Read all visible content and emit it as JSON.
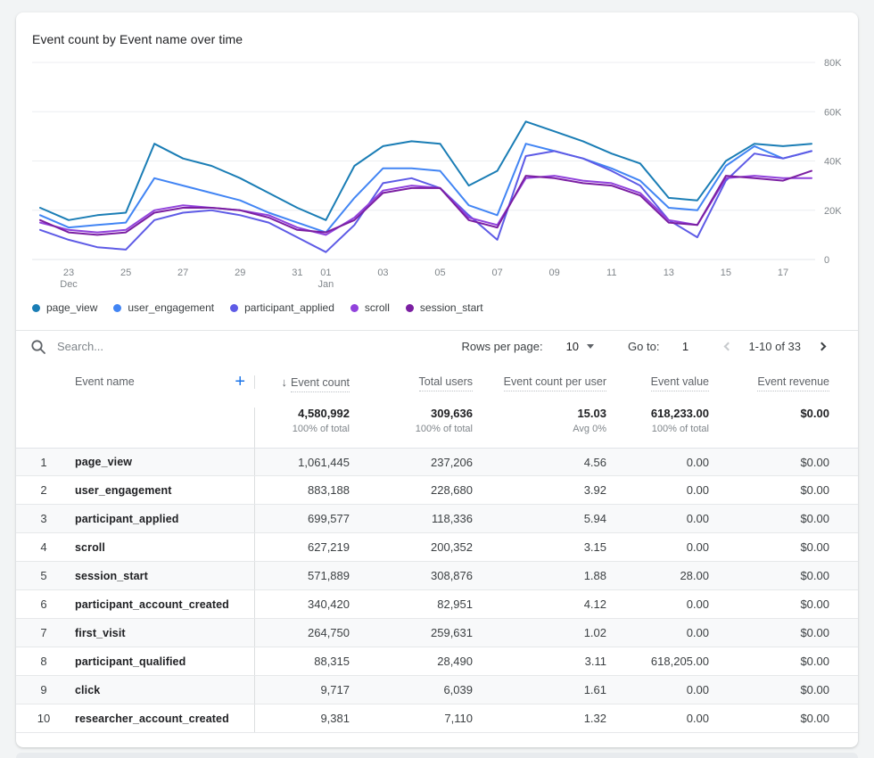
{
  "card": {
    "title": "Event count by Event name over time"
  },
  "chart_data": {
    "type": "line",
    "title": "Event count by Event name over time",
    "xlabel": "",
    "ylabel": "Event count",
    "ylim": [
      0,
      80000
    ],
    "grid": true,
    "legend_position": "bottom",
    "x": [
      "Dec 22",
      "Dec 23",
      "Dec 24",
      "Dec 25",
      "Dec 26",
      "Dec 27",
      "Dec 28",
      "Dec 29",
      "Dec 30",
      "Dec 31",
      "Jan 01",
      "Jan 02",
      "Jan 03",
      "Jan 04",
      "Jan 05",
      "Jan 06",
      "Jan 07",
      "Jan 08",
      "Jan 09",
      "Jan 10",
      "Jan 11",
      "Jan 12",
      "Jan 13",
      "Jan 14",
      "Jan 15",
      "Jan 16",
      "Jan 17",
      "Jan 18"
    ],
    "x_ticks": [
      {
        "index": 1,
        "label": "23",
        "sub": "Dec"
      },
      {
        "index": 3,
        "label": "25"
      },
      {
        "index": 5,
        "label": "27"
      },
      {
        "index": 7,
        "label": "29"
      },
      {
        "index": 9,
        "label": "31"
      },
      {
        "index": 10,
        "label": "01",
        "sub": "Jan"
      },
      {
        "index": 12,
        "label": "03"
      },
      {
        "index": 14,
        "label": "05"
      },
      {
        "index": 16,
        "label": "07"
      },
      {
        "index": 18,
        "label": "09"
      },
      {
        "index": 20,
        "label": "11"
      },
      {
        "index": 22,
        "label": "13"
      },
      {
        "index": 24,
        "label": "15"
      },
      {
        "index": 26,
        "label": "17"
      }
    ],
    "y_ticks": [
      {
        "value": 0,
        "label": "0"
      },
      {
        "value": 20000,
        "label": "20K"
      },
      {
        "value": 40000,
        "label": "40K"
      },
      {
        "value": 60000,
        "label": "60K"
      },
      {
        "value": 80000,
        "label": "80K"
      }
    ],
    "series": [
      {
        "name": "page_view",
        "color": "#1A7DB5",
        "values": [
          21000,
          16000,
          18000,
          19000,
          47000,
          41000,
          38000,
          33000,
          27000,
          21000,
          16000,
          38000,
          46000,
          48000,
          47000,
          30000,
          36000,
          56000,
          52000,
          48000,
          43000,
          39000,
          25000,
          24000,
          40000,
          47000,
          46000,
          47000
        ]
      },
      {
        "name": "user_engagement",
        "color": "#4285F4",
        "values": [
          18000,
          13000,
          14000,
          15000,
          33000,
          30000,
          27000,
          24000,
          19000,
          15000,
          11000,
          25000,
          37000,
          37000,
          36000,
          22000,
          18000,
          47000,
          44000,
          41000,
          37000,
          32000,
          21000,
          20000,
          38000,
          46000,
          41000,
          44000
        ]
      },
      {
        "name": "participant_applied",
        "color": "#5E5BE6",
        "values": [
          12000,
          8000,
          5000,
          4000,
          16000,
          19000,
          20000,
          18000,
          15000,
          9000,
          3000,
          14000,
          31000,
          33000,
          29000,
          18000,
          8000,
          42000,
          44000,
          41000,
          36000,
          30000,
          16000,
          9000,
          32000,
          43000,
          41000,
          44000
        ]
      },
      {
        "name": "scroll",
        "color": "#9142DC",
        "values": [
          15000,
          12000,
          11000,
          12000,
          20000,
          22000,
          21000,
          20000,
          18000,
          13000,
          10000,
          17000,
          28000,
          30000,
          29000,
          17000,
          14000,
          33000,
          34000,
          32000,
          31000,
          27000,
          16000,
          14000,
          33000,
          34000,
          33000,
          33000
        ]
      },
      {
        "name": "session_start",
        "color": "#7B1FA2",
        "values": [
          16000,
          11000,
          10000,
          11000,
          19000,
          21000,
          21000,
          20000,
          17000,
          12000,
          11000,
          16000,
          27000,
          29000,
          29000,
          16000,
          13000,
          34000,
          33000,
          31000,
          30000,
          26000,
          15000,
          14000,
          34000,
          33000,
          32000,
          36000
        ]
      }
    ]
  },
  "toolbar": {
    "search_placeholder": "Search...",
    "rows_per_page_label": "Rows per page:",
    "rows_per_page_value": "10",
    "goto_label": "Go to:",
    "goto_value": "1",
    "range_text": "1-10 of 33"
  },
  "table": {
    "header": {
      "name": "Event name",
      "count": "Event count",
      "users": "Total users",
      "per_user": "Event count per user",
      "value": "Event value",
      "revenue": "Event revenue"
    },
    "sort": {
      "column": "Event count",
      "direction": "desc",
      "arrow": "↓"
    },
    "plus_label": "+",
    "totals": {
      "count": "4,580,992",
      "count_sub": "100% of total",
      "users": "309,636",
      "users_sub": "100% of total",
      "per_user": "15.03",
      "per_user_sub": "Avg 0%",
      "value": "618,233.00",
      "value_sub": "100% of total",
      "revenue": "$0.00"
    },
    "rows": [
      [
        "1",
        "page_view",
        "1,061,445",
        "237,206",
        "4.56",
        "0.00",
        "$0.00"
      ],
      [
        "2",
        "user_engagement",
        "883,188",
        "228,680",
        "3.92",
        "0.00",
        "$0.00"
      ],
      [
        "3",
        "participant_applied",
        "699,577",
        "118,336",
        "5.94",
        "0.00",
        "$0.00"
      ],
      [
        "4",
        "scroll",
        "627,219",
        "200,352",
        "3.15",
        "0.00",
        "$0.00"
      ],
      [
        "5",
        "session_start",
        "571,889",
        "308,876",
        "1.88",
        "28.00",
        "$0.00"
      ],
      [
        "6",
        "participant_account_created",
        "340,420",
        "82,951",
        "4.12",
        "0.00",
        "$0.00"
      ],
      [
        "7",
        "first_visit",
        "264,750",
        "259,631",
        "1.02",
        "0.00",
        "$0.00"
      ],
      [
        "8",
        "participant_qualified",
        "88,315",
        "28,490",
        "3.11",
        "618,205.00",
        "$0.00"
      ],
      [
        "9",
        "click",
        "9,717",
        "6,039",
        "1.61",
        "0.00",
        "$0.00"
      ],
      [
        "10",
        "researcher_account_created",
        "9,381",
        "7,110",
        "1.32",
        "0.00",
        "$0.00"
      ]
    ]
  }
}
